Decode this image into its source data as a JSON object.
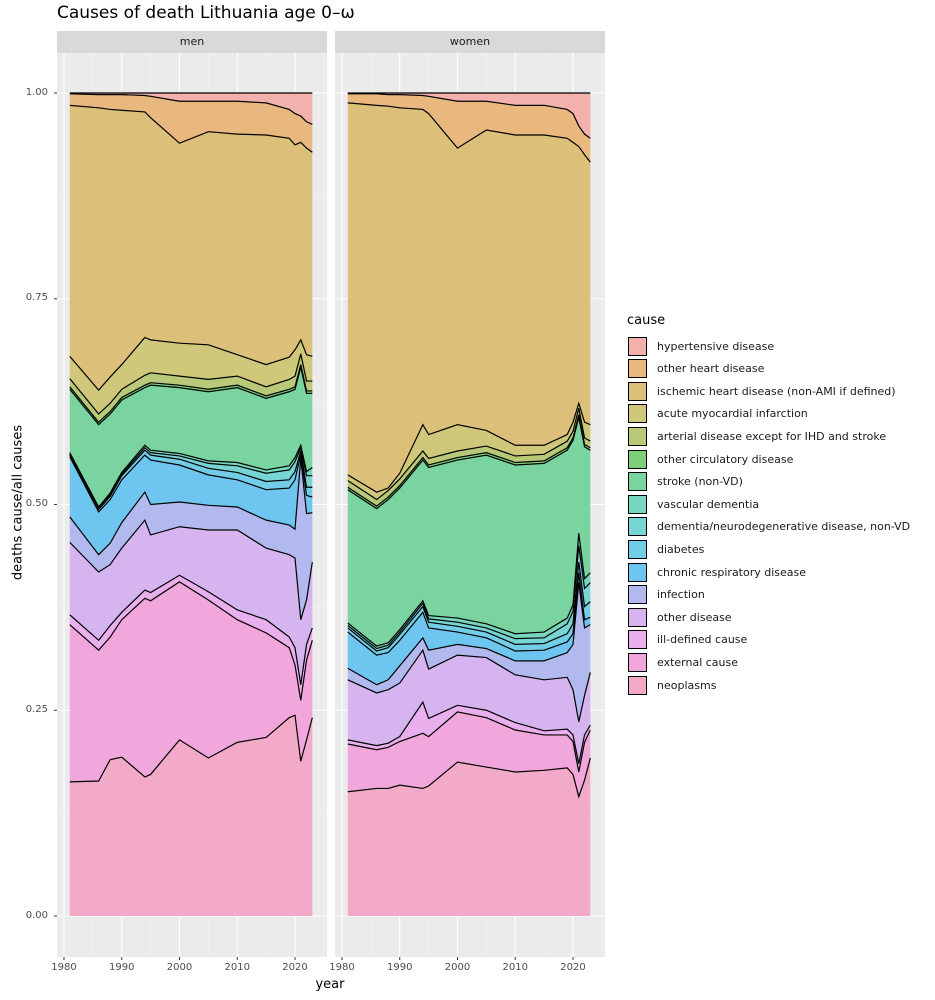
{
  "chart_data": {
    "type": "area",
    "stacked": true,
    "title": "Causes of death Lithuania age 0–ω",
    "xlabel": "year",
    "ylabel": "deaths cause/all causes",
    "xlim": [
      1980,
      2023
    ],
    "ylim": [
      0,
      1
    ],
    "x_ticks": [
      "1980",
      "1990",
      "2000",
      "2010",
      "2020"
    ],
    "y_ticks": [
      "0.00",
      "0.25",
      "0.50",
      "0.75",
      "1.00"
    ],
    "grid": true,
    "legend_title": "cause",
    "legend_position": "right",
    "value_encoding": "cumulative stacked share (top edge of each cause's band)",
    "x": [
      1981,
      1986,
      1988,
      1990,
      1994,
      1995,
      2000,
      2005,
      2010,
      2015,
      2019,
      2020,
      2021,
      2022,
      2023
    ],
    "causes": [
      {
        "name": "neoplasms",
        "color": "#f3a9c8"
      },
      {
        "name": "external cause",
        "color": "#f2a7dc"
      },
      {
        "name": "ill-defined cause",
        "color": "#eab0ee"
      },
      {
        "name": "other disease",
        "color": "#d5b4f0"
      },
      {
        "name": "infection",
        "color": "#b2b9ee"
      },
      {
        "name": "chronic respiratory disease",
        "color": "#6ec6f0"
      },
      {
        "name": "diabetes",
        "color": "#72cde6"
      },
      {
        "name": "dementia/neurodegenerative disease, non-VD",
        "color": "#77d5d4"
      },
      {
        "name": "vascular dementia",
        "color": "#76d6be"
      },
      {
        "name": "stroke (non-VD)",
        "color": "#79d4a0"
      },
      {
        "name": "other circulatory disease",
        "color": "#7fcf7a"
      },
      {
        "name": "arterial disease except for IHD and stroke",
        "color": "#b8c978"
      },
      {
        "name": "acute myocardial infarction",
        "color": "#cfc779"
      },
      {
        "name": "ischemic heart disease (non-AMI if defined)",
        "color": "#dcc07a"
      },
      {
        "name": "other heart disease",
        "color": "#e8b87e"
      },
      {
        "name": "hypertensive disease",
        "color": "#f2b1ac"
      }
    ],
    "panels": [
      {
        "label": "men",
        "series": [
          [
            0.163,
            0.164,
            0.19,
            0.193,
            0.169,
            0.172,
            0.214,
            0.192,
            0.211,
            0.217,
            0.241,
            0.244,
            0.188,
            0.214,
            0.241
          ],
          [
            0.354,
            0.323,
            0.339,
            0.36,
            0.386,
            0.383,
            0.406,
            0.384,
            0.36,
            0.344,
            0.326,
            0.305,
            0.262,
            0.311,
            0.335
          ],
          [
            0.366,
            0.335,
            0.353,
            0.369,
            0.396,
            0.393,
            0.414,
            0.394,
            0.372,
            0.36,
            0.339,
            0.326,
            0.281,
            0.33,
            0.35
          ],
          [
            0.454,
            0.418,
            0.427,
            0.447,
            0.481,
            0.463,
            0.473,
            0.469,
            0.469,
            0.447,
            0.439,
            0.435,
            0.36,
            0.384,
            0.43
          ],
          [
            0.485,
            0.439,
            0.453,
            0.478,
            0.515,
            0.5,
            0.503,
            0.499,
            0.497,
            0.481,
            0.475,
            0.47,
            0.556,
            0.489,
            0.49
          ],
          [
            0.558,
            0.491,
            0.506,
            0.53,
            0.56,
            0.554,
            0.548,
            0.536,
            0.53,
            0.518,
            0.52,
            0.53,
            0.561,
            0.511,
            0.509
          ],
          [
            0.56,
            0.494,
            0.51,
            0.535,
            0.566,
            0.56,
            0.555,
            0.544,
            0.539,
            0.528,
            0.53,
            0.54,
            0.565,
            0.521,
            0.521
          ],
          [
            0.561,
            0.495,
            0.512,
            0.537,
            0.569,
            0.563,
            0.559,
            0.55,
            0.547,
            0.538,
            0.542,
            0.552,
            0.569,
            0.535,
            0.535
          ],
          [
            0.563,
            0.497,
            0.514,
            0.539,
            0.572,
            0.566,
            0.562,
            0.553,
            0.551,
            0.542,
            0.547,
            0.557,
            0.572,
            0.54,
            0.545
          ],
          [
            0.64,
            0.597,
            0.61,
            0.627,
            0.642,
            0.645,
            0.642,
            0.637,
            0.642,
            0.629,
            0.637,
            0.64,
            0.667,
            0.635,
            0.635
          ],
          [
            0.643,
            0.6,
            0.613,
            0.63,
            0.645,
            0.648,
            0.645,
            0.64,
            0.645,
            0.632,
            0.64,
            0.643,
            0.67,
            0.638,
            0.638
          ],
          [
            0.653,
            0.61,
            0.623,
            0.64,
            0.657,
            0.66,
            0.656,
            0.652,
            0.656,
            0.643,
            0.652,
            0.656,
            0.683,
            0.65,
            0.65
          ],
          [
            0.68,
            0.639,
            0.655,
            0.67,
            0.703,
            0.7,
            0.696,
            0.694,
            0.682,
            0.67,
            0.679,
            0.688,
            0.7,
            0.682,
            0.68
          ],
          [
            0.985,
            0.982,
            0.98,
            0.979,
            0.977,
            0.97,
            0.939,
            0.953,
            0.95,
            0.949,
            0.945,
            0.937,
            0.94,
            0.933,
            0.928
          ],
          [
            0.999,
            0.998,
            0.998,
            0.998,
            0.997,
            0.996,
            0.99,
            0.99,
            0.99,
            0.988,
            0.98,
            0.975,
            0.972,
            0.965,
            0.962
          ],
          [
            1,
            1,
            1,
            1,
            1,
            1,
            1,
            1,
            1,
            1,
            1,
            1,
            1,
            1,
            1
          ]
        ]
      },
      {
        "label": "women",
        "series": [
          [
            0.151,
            0.155,
            0.155,
            0.159,
            0.155,
            0.158,
            0.187,
            0.181,
            0.175,
            0.177,
            0.18,
            0.172,
            0.145,
            0.165,
            0.192
          ],
          [
            0.209,
            0.202,
            0.205,
            0.212,
            0.222,
            0.218,
            0.248,
            0.241,
            0.226,
            0.22,
            0.22,
            0.212,
            0.175,
            0.211,
            0.226
          ],
          [
            0.214,
            0.207,
            0.21,
            0.218,
            0.26,
            0.24,
            0.256,
            0.25,
            0.235,
            0.225,
            0.227,
            0.22,
            0.185,
            0.22,
            0.232
          ],
          [
            0.287,
            0.271,
            0.275,
            0.283,
            0.323,
            0.3,
            0.317,
            0.314,
            0.293,
            0.287,
            0.29,
            0.275,
            0.236,
            0.268,
            0.296
          ],
          [
            0.301,
            0.281,
            0.287,
            0.304,
            0.338,
            0.323,
            0.33,
            0.325,
            0.31,
            0.31,
            0.32,
            0.33,
            0.405,
            0.35,
            0.354
          ],
          [
            0.345,
            0.317,
            0.32,
            0.335,
            0.369,
            0.35,
            0.345,
            0.338,
            0.322,
            0.323,
            0.333,
            0.343,
            0.417,
            0.36,
            0.363
          ],
          [
            0.35,
            0.322,
            0.326,
            0.342,
            0.376,
            0.357,
            0.352,
            0.345,
            0.33,
            0.331,
            0.343,
            0.355,
            0.43,
            0.376,
            0.382
          ],
          [
            0.353,
            0.325,
            0.329,
            0.345,
            0.38,
            0.361,
            0.357,
            0.35,
            0.337,
            0.338,
            0.355,
            0.37,
            0.45,
            0.398,
            0.405
          ],
          [
            0.356,
            0.328,
            0.332,
            0.348,
            0.383,
            0.365,
            0.362,
            0.355,
            0.343,
            0.345,
            0.362,
            0.378,
            0.465,
            0.41,
            0.417
          ],
          [
            0.518,
            0.495,
            0.506,
            0.52,
            0.554,
            0.545,
            0.554,
            0.56,
            0.548,
            0.55,
            0.566,
            0.578,
            0.606,
            0.57,
            0.566
          ],
          [
            0.521,
            0.498,
            0.509,
            0.523,
            0.557,
            0.548,
            0.557,
            0.563,
            0.551,
            0.553,
            0.569,
            0.581,
            0.609,
            0.573,
            0.569
          ],
          [
            0.529,
            0.506,
            0.517,
            0.531,
            0.565,
            0.556,
            0.565,
            0.571,
            0.559,
            0.561,
            0.577,
            0.589,
            0.617,
            0.581,
            0.577
          ],
          [
            0.536,
            0.515,
            0.52,
            0.538,
            0.597,
            0.585,
            0.597,
            0.59,
            0.572,
            0.572,
            0.585,
            0.6,
            0.623,
            0.6,
            0.597
          ],
          [
            0.988,
            0.985,
            0.984,
            0.982,
            0.98,
            0.975,
            0.933,
            0.955,
            0.949,
            0.949,
            0.945,
            0.94,
            0.935,
            0.925,
            0.916
          ],
          [
            0.999,
            0.999,
            0.998,
            0.998,
            0.997,
            0.996,
            0.99,
            0.99,
            0.985,
            0.985,
            0.98,
            0.975,
            0.96,
            0.95,
            0.945
          ],
          [
            1,
            1,
            1,
            1,
            1,
            1,
            1,
            1,
            1,
            1,
            1,
            1,
            1,
            1,
            1
          ]
        ]
      }
    ]
  }
}
